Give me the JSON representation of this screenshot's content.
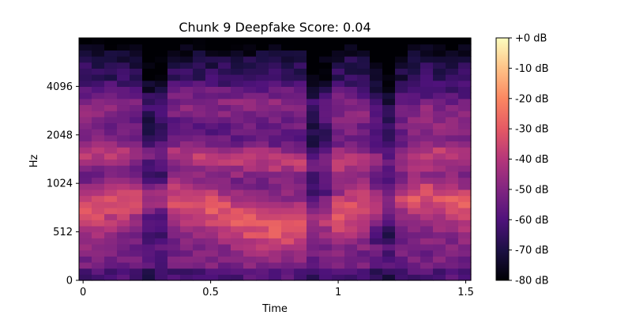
{
  "chart_data": {
    "type": "heatmap",
    "title": "Chunk 9 Deepfake Score: 0.04",
    "xlabel": "Time",
    "ylabel": "Hz",
    "x_ticks": [
      {
        "value": 0,
        "label": "0"
      },
      {
        "value": 0.5,
        "label": "0.5"
      },
      {
        "value": 1,
        "label": "1"
      },
      {
        "value": 1.5,
        "label": "1.5"
      }
    ],
    "y_ticks": [
      {
        "value": 0,
        "label": "0"
      },
      {
        "value": 512,
        "label": "512"
      },
      {
        "value": 1024,
        "label": "1024"
      },
      {
        "value": 2048,
        "label": "2048"
      },
      {
        "value": 4096,
        "label": "4096"
      }
    ],
    "xlim": [
      -0.016,
      1.52
    ],
    "colorbar": {
      "label_ticks": [
        "+0 dB",
        "-10 dB",
        "-20 dB",
        "-30 dB",
        "-40 dB",
        "-50 dB",
        "-60 dB",
        "-70 dB",
        "-80 dB"
      ],
      "range_db": [
        -80,
        0
      ],
      "colormap": "magma"
    },
    "colors": {
      "magma_stops": [
        "#000004",
        "#1c1044",
        "#4f127b",
        "#812581",
        "#b5367a",
        "#e55964",
        "#fb8761",
        "#fec287",
        "#fcfdbf"
      ]
    },
    "spectrogram": {
      "time_frames": 31,
      "freq_bins": 40,
      "note": "dB values generated from formant bands; values in dB"
    }
  }
}
